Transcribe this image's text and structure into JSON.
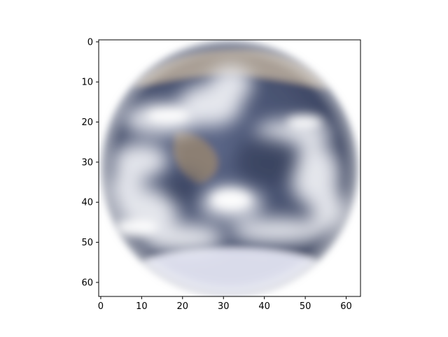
{
  "chart_data": {
    "type": "image",
    "title": "",
    "xlabel": "",
    "ylabel": "",
    "image_size": [
      64,
      64
    ],
    "xlim": [
      -0.5,
      63.5
    ],
    "ylim": [
      63.5,
      -0.5
    ],
    "y_inverted": true,
    "xticks": [
      0,
      10,
      20,
      30,
      40,
      50,
      60
    ],
    "yticks": [
      0,
      10,
      20,
      30,
      40,
      50,
      60
    ],
    "image_content": "blurred-earth-globe",
    "colors": {
      "ocean": "#3b4766",
      "cloud": "#f2f3f7",
      "land": "#a99f95",
      "ice": "#d9dbea"
    }
  }
}
